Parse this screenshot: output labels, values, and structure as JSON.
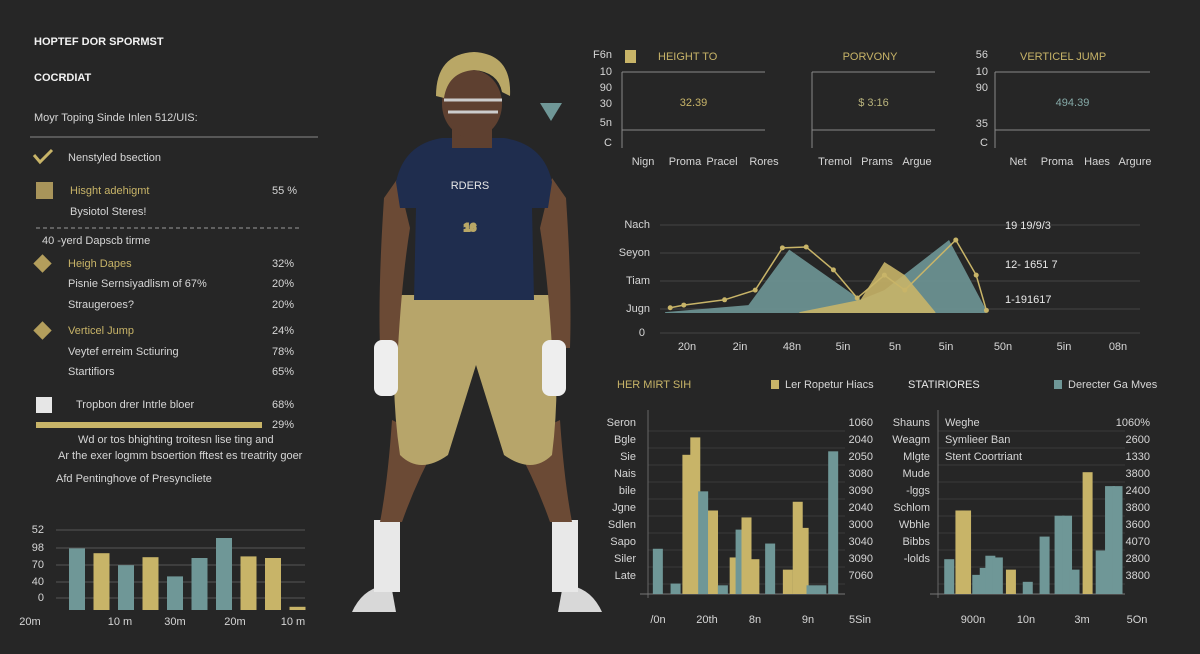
{
  "header": {
    "title_lines": [
      "HOPTEF DOR SPORMST",
      "COCRDIAT"
    ],
    "subtitle": "Moyr Toping Sinde Inlen 512/UIS:"
  },
  "sidebar": {
    "rows": [
      {
        "label": "Nenstyled bsection"
      },
      {
        "label": "Hisght adehigmt",
        "value": "55 %"
      },
      {
        "label": "Bysiotol Steres!"
      },
      {
        "label": "40 -yerd Dapscb tirme"
      },
      {
        "label": "Heigh Dapes",
        "value": "32%"
      },
      {
        "label": "Pisnie Sernsiyadlism of 67%",
        "value": "20%"
      },
      {
        "label": "Straugeroes?",
        "value": "20%"
      },
      {
        "label": "Verticel Jump",
        "value": "24%"
      },
      {
        "label": "Veytef erreim Sctiuring",
        "value": "78%"
      },
      {
        "label": "Startifiors",
        "value": "65%"
      },
      {
        "label": "Tropbon drer Intrle bloer",
        "value": "68%"
      },
      {
        "value": "29%"
      },
      {
        "label": "Wd or tos bhighting troitesn lise ting and"
      },
      {
        "label": "Ar the exer logmm bsoertion fftest es treatrity goer"
      },
      {
        "label": "Afd Pentinghove of Presyncliete"
      }
    ]
  },
  "mini_bar_chart": {
    "y_labels": [
      "52",
      "98",
      "70",
      "40",
      "0"
    ],
    "x_labels": [
      "20m",
      "10 m",
      "30m",
      "20m",
      "10 m"
    ],
    "ylim": [
      0,
      100
    ],
    "values": [
      77,
      71,
      56,
      66,
      42,
      65,
      90,
      67,
      65,
      4
    ],
    "colors": [
      "#6f9797",
      "#c8b468",
      "#6f9797",
      "#c8b468",
      "#6f9797",
      "#6f9797",
      "#6f9797",
      "#c8b468",
      "#c8b468",
      "#c8b468"
    ]
  },
  "player": {
    "jersey_text": "RDERS",
    "jersey_number": "16"
  },
  "kpis": [
    {
      "title": "HEIGHT TO",
      "value": "32.39",
      "y_labels": [
        "F6n",
        "10",
        "90",
        "30",
        "5n",
        "C"
      ],
      "x_labels": [
        "Nign",
        "Proma",
        "Pracel",
        "Rores"
      ]
    },
    {
      "title": "PORVONY",
      "value": "$ 3:16",
      "x_labels": [
        "Tremol",
        "Prams",
        "Argue"
      ]
    },
    {
      "title": "VERTICEL JUMP",
      "value": "494.39",
      "y_labels": [
        "56",
        "10",
        "90",
        "35",
        "C"
      ],
      "x_labels": [
        "Net",
        "Proma",
        "Haes",
        "Argure"
      ]
    }
  ],
  "area_chart": {
    "y_labels": [
      "Nach",
      "Seyon",
      "Tiam",
      "Jugn",
      "0"
    ],
    "x_labels": [
      "20n",
      "2in",
      "48n",
      "5in",
      "5n",
      "5in",
      "50n",
      "5in",
      "08n"
    ],
    "side_labels": [
      "19 19/9/3",
      "12- 1651 7",
      "1-191617"
    ],
    "xlim": [
      0,
      100
    ],
    "ylim": [
      0,
      100
    ],
    "areas": [
      {
        "color": "#6f9797",
        "x": [
          1.5,
          26,
          38,
          59,
          66,
          85,
          96
        ],
        "y": [
          1,
          9,
          72,
          15,
          26,
          83,
          3
        ]
      },
      {
        "color": "#c8b468",
        "x": [
          41,
          59,
          66,
          72,
          78,
          81
        ],
        "y": [
          1,
          15,
          58,
          43,
          15,
          1
        ]
      }
    ],
    "line": {
      "color": "#c8b468",
      "x": [
        3,
        7,
        19,
        28,
        36,
        43,
        51,
        58,
        66,
        72,
        87,
        93,
        96
      ],
      "y": [
        6,
        9,
        15,
        26,
        74,
        75,
        49,
        17,
        43,
        26,
        83,
        43,
        3
      ]
    }
  },
  "bar_charts": [
    {
      "title": "HER MIRT SIH",
      "legend": "Ler Ropetur Hiacs",
      "legend_color": "#c8b468",
      "left_labels": [
        "Seron",
        "Bgle",
        "Sie",
        "Nais",
        "bile",
        "Jgne",
        "Sdlen",
        "Sapo",
        "Siler",
        "Late"
      ],
      "right_labels": [
        "1060",
        "2040",
        "2050",
        "3080",
        "3090",
        "2040",
        "3000",
        "3040",
        "3090",
        "7060"
      ],
      "x_labels": [
        "/0n",
        "20th",
        "8n",
        "9n",
        "5Sin"
      ],
      "xlim": [
        0,
        100
      ],
      "ylim": [
        0,
        100
      ],
      "x": [
        5,
        14,
        20,
        24,
        28,
        33,
        38,
        44,
        47,
        50,
        54,
        62,
        71,
        76,
        79,
        83,
        88,
        94
      ],
      "values": [
        26,
        6,
        80,
        90,
        59,
        48,
        5,
        21,
        37,
        44,
        20,
        29,
        14,
        53,
        38,
        5,
        5,
        82
      ],
      "colors": [
        "#6f9797",
        "#6f9797",
        "#c8b468",
        "#c8b468",
        "#6f9797",
        "#c8b468",
        "#6f9797",
        "#c8b468",
        "#6f9797",
        "#c8b468",
        "#c8b468",
        "#6f9797",
        "#c8b468",
        "#c8b468",
        "#c8b468",
        "#6f9797",
        "#6f9797",
        "#6f9797"
      ]
    },
    {
      "title": "STATIRIORES",
      "legend": "Derecter Ga Mves",
      "legend_color": "#6f9797",
      "left_labels": [
        "Shauns",
        "Weagm",
        "Mlgte",
        "Mude",
        "-lggs",
        "Schlom",
        "Wbhle",
        "Bibbs",
        "-lolds"
      ],
      "inner_labels": [
        "Weghe",
        "Symlieer Ban",
        "Stent Coortriant"
      ],
      "right_labels": [
        "1060%",
        "2600",
        "1330",
        "3800",
        "2400",
        "3800",
        "3600",
        "4070",
        "2800",
        "3800"
      ],
      "x_labels": [
        "900n",
        "10n",
        "3m",
        "5On"
      ],
      "xlim": [
        0,
        100
      ],
      "ylim": [
        0,
        100
      ],
      "x": [
        6,
        12,
        15,
        21,
        25,
        28,
        32,
        39,
        48,
        57,
        65,
        69,
        73,
        80,
        87,
        92,
        96
      ],
      "values": [
        20,
        48,
        48,
        11,
        15,
        22,
        21,
        14,
        7,
        33,
        45,
        45,
        14,
        70,
        25,
        62,
        62
      ],
      "colors": [
        "#6f9797",
        "#c8b468",
        "#c8b468",
        "#6f9797",
        "#6f9797",
        "#6f9797",
        "#6f9797",
        "#c8b468",
        "#6f9797",
        "#6f9797",
        "#6f9797",
        "#6f9797",
        "#6f9797",
        "#c8b468",
        "#6f9797",
        "#6f9797",
        "#6f9797"
      ]
    }
  ]
}
